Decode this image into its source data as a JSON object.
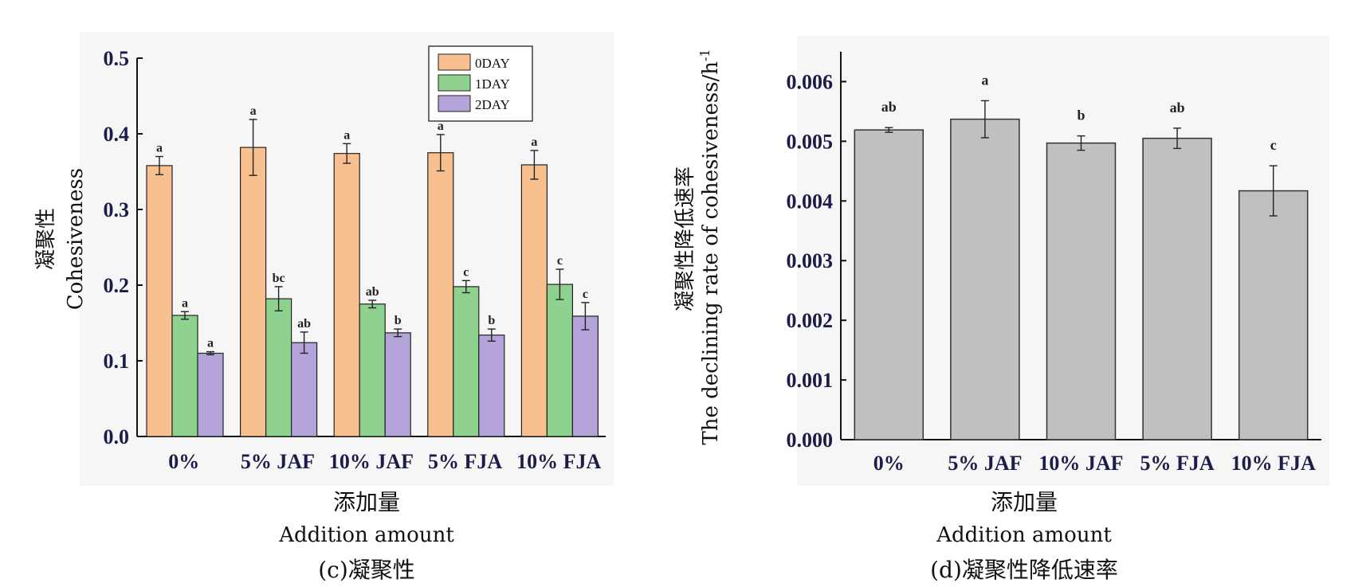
{
  "chart_data": [
    {
      "type": "bar",
      "ylabel_zh": "凝聚性",
      "ylabel_en": "Cohesiveness",
      "xlabel_zh": "添加量",
      "xlabel_en": "Addition amount",
      "caption": "(c)凝聚性",
      "categories": [
        "0%",
        "5% JAF",
        "10% JAF",
        "5% FJA",
        "10% FJA"
      ],
      "ylim": [
        0,
        0.5
      ],
      "yticks": [
        "0.0",
        "0.1",
        "0.2",
        "0.3",
        "0.4",
        "0.5"
      ],
      "legend_position": "top-right",
      "series": [
        {
          "name": "0DAY",
          "color": "#f9c08f",
          "values": [
            0.358,
            0.382,
            0.374,
            0.375,
            0.359
          ],
          "errors": [
            0.012,
            0.037,
            0.013,
            0.024,
            0.019
          ],
          "labels": [
            "a",
            "a",
            "a",
            "a",
            "a"
          ]
        },
        {
          "name": "1DAY",
          "color": "#8fd18f",
          "values": [
            0.16,
            0.182,
            0.175,
            0.198,
            0.201
          ],
          "errors": [
            0.005,
            0.016,
            0.005,
            0.008,
            0.02
          ],
          "labels": [
            "a",
            "bc",
            "ab",
            "c",
            "c"
          ]
        },
        {
          "name": "2DAY",
          "color": "#b4a3d8",
          "values": [
            0.11,
            0.124,
            0.137,
            0.134,
            0.159
          ],
          "errors": [
            0.002,
            0.014,
            0.005,
            0.008,
            0.018
          ],
          "labels": [
            "a",
            "ab",
            "b",
            "b",
            "c"
          ]
        }
      ]
    },
    {
      "type": "bar",
      "ylabel_zh": "凝聚性降低速率",
      "ylabel_en": "The declining rate of cohesiveness/h",
      "ylabel_sup": "-1",
      "xlabel_zh": "添加量",
      "xlabel_en": "Addition amount",
      "caption": "(d)凝聚性降低速率",
      "categories": [
        "0%",
        "5% JAF",
        "10% JAF",
        "5% FJA",
        "10% FJA"
      ],
      "ylim": [
        0,
        0.0065
      ],
      "yticks": [
        "0.000",
        "0.001",
        "0.002",
        "0.003",
        "0.004",
        "0.005",
        "0.006"
      ],
      "bar_color": "#c0c0c0",
      "values": [
        0.00519,
        0.00537,
        0.00497,
        0.00505,
        0.00417
      ],
      "errors": [
        4e-05,
        0.00031,
        0.00012,
        0.00017,
        0.00042
      ],
      "labels": [
        "ab",
        "a",
        "b",
        "ab",
        "c"
      ]
    }
  ]
}
